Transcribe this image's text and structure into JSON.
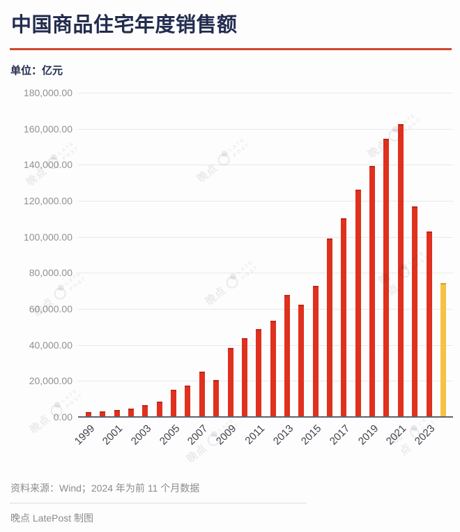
{
  "header": {
    "title": "中国商品住宅年度销售额"
  },
  "chart": {
    "unit_label": "单位：亿元"
  },
  "colors": {
    "title_navy": "#222c4e",
    "accent_rule_red": "#d0462f",
    "bar_red": "#e0301e",
    "bar_yellow": "#f6c244",
    "axis_line": "#5d6470",
    "gridline": "#e9e9e9",
    "y_label_gray": "#8f9092",
    "x_label_dark": "#3e4049",
    "footer_gray": "#8b8b8b"
  },
  "chart_data": {
    "type": "bar",
    "title": "中国商品住宅年度销售额",
    "unit": "亿元",
    "categories": [
      1999,
      2000,
      2001,
      2002,
      2003,
      2004,
      2005,
      2006,
      2007,
      2008,
      2009,
      2010,
      2011,
      2012,
      2013,
      2014,
      2015,
      2016,
      2017,
      2018,
      2019,
      2020,
      2021,
      2022,
      2023,
      2024
    ],
    "values": [
      2549,
      3229,
      4022,
      4710,
      6547,
      8619,
      14986,
      17289,
      25323,
      20364,
      38157,
      43620,
      48684,
      53467,
      67695,
      62396,
      72770,
      99064,
      110240,
      126393,
      139440,
      154567,
      162730,
      116747,
      102990,
      74500
    ],
    "highlight_last_bar": true,
    "ylim": [
      0,
      180000
    ],
    "y_tick_step": 20000,
    "y_tick_labels": [
      "180,000.00",
      "160,000.00",
      "140,000.00",
      "120,000.00",
      "100,000.00",
      "80,000.00",
      "60,000.00",
      "40,000.00",
      "20,000.00",
      "0.00"
    ],
    "x_tick_labels_shown": [
      "1999",
      "2001",
      "2003",
      "2005",
      "2007",
      "2009",
      "2011",
      "2013",
      "2015",
      "2017",
      "2019",
      "2021",
      "2023"
    ],
    "grid": true,
    "legend": "none",
    "xlabel": "",
    "ylabel": "亿元"
  },
  "watermark": {
    "cn": "晚点",
    "en_line1": "LATE",
    "en_line2": "POST"
  },
  "footer": {
    "source": "资料来源：Wind；2024 年为前 11 个月数据",
    "credit": "晚点 LatePost 制图"
  }
}
